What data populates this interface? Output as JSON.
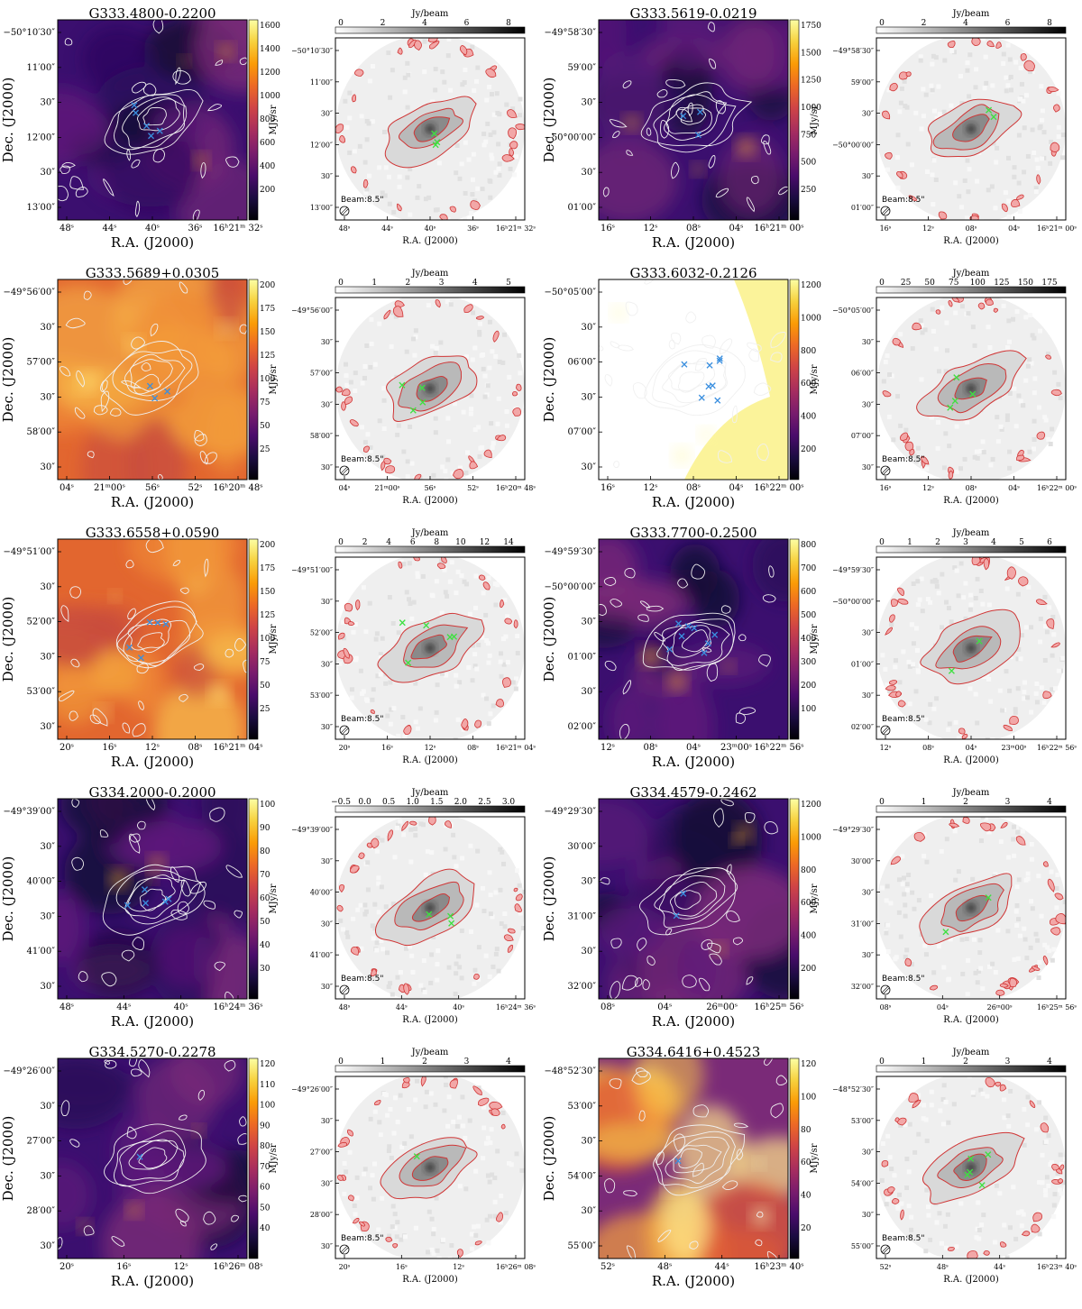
{
  "figure": {
    "xlabel": "R.A. (J2000)",
    "ylabel": "Dec. (J2000)",
    "sb_unit": "MJy/sr",
    "flux_unit": "Jy/beam",
    "beam_label": "Beam:8.5\""
  },
  "colors": {
    "contour_white": "#f0f0f0",
    "contour_red": "#d03535",
    "fill_red": "#f2a7a7",
    "cross_blue": "#3a8fdf",
    "cross_green": "#3ee040"
  },
  "chart_data": [
    {
      "type": "heatmap",
      "title": "G333.4800-0.2200",
      "cmap": "inferno",
      "bg": "dark",
      "colorbar": {
        "label": "MJy/sr",
        "scale": "log",
        "range": [
          100,
          1700
        ],
        "ticks": [
          "1600",
          "1400",
          "1200",
          "1000",
          "800",
          "600",
          "400",
          "200"
        ]
      },
      "ra_ticks": [
        "48ˢ",
        "44ˢ",
        "40ˢ",
        "36ˢ",
        "16ʰ21ᵐ 32ˢ"
      ],
      "dec_ticks": [
        "−50°10′30″",
        "11′00″",
        "30″",
        "12′00″",
        "30″",
        "13′00″"
      ],
      "blue_crosses": 5
    },
    {
      "type": "heatmap",
      "title": "",
      "cmap": "gray",
      "colorbar": {
        "label": "Jy/beam",
        "range": [
          -1,
          8.5
        ],
        "ticks": [
          "0",
          "2",
          "4",
          "6",
          "8"
        ]
      },
      "ra_ticks": [
        "48ˢ",
        "44ˢ",
        "40ˢ",
        "36ˢ",
        "16ʰ21ᵐ 32ˢ"
      ],
      "dec_ticks": [
        "−50°10′30″",
        "11′00″",
        "30″",
        "12′00″",
        "30″",
        "13′00″"
      ],
      "green_crosses": 3
    },
    {
      "type": "heatmap",
      "title": "G333.5619-0.0219",
      "cmap": "inferno",
      "bg": "dark",
      "colorbar": {
        "label": "MJy/sr",
        "scale": "log",
        "range": [
          100,
          1800
        ],
        "ticks": [
          "1750",
          "1500",
          "1250",
          "1000",
          "750",
          "500",
          "250"
        ]
      },
      "ra_ticks": [
        "16ˢ",
        "12ˢ",
        "08ˢ",
        "04ˢ",
        "16ʰ21ᵐ 00ˢ"
      ],
      "dec_ticks": [
        "−49°58′30″",
        "59′00″",
        "30″",
        "−50°00′00″",
        "30″",
        "01′00″"
      ],
      "blue_crosses": 3
    },
    {
      "type": "heatmap",
      "title": "",
      "cmap": "gray",
      "colorbar": {
        "label": "Jy/beam",
        "range": [
          -1,
          8.5
        ],
        "ticks": [
          "0",
          "2",
          "4",
          "6",
          "8"
        ]
      },
      "ra_ticks": [
        "16ˢ",
        "12ˢ",
        "08ˢ",
        "04ˢ",
        "16ʰ21ᵐ 00ˢ"
      ],
      "dec_ticks": [
        "−49°58′30″",
        "59′00″",
        "30″",
        "−50°00′00″",
        "30″",
        "01′00″"
      ],
      "green_crosses": 2
    },
    {
      "type": "heatmap",
      "title": "G333.5689+0.0305",
      "cmap": "inferno",
      "bg": "warm",
      "colorbar": {
        "label": "MJy/sr",
        "scale": "log",
        "range": [
          20,
          210
        ],
        "ticks": [
          "200",
          "175",
          "150",
          "125",
          "100",
          "75",
          "50",
          "25"
        ]
      },
      "ra_ticks": [
        "04ˢ",
        "21ᵐ00ˢ",
        "56ˢ",
        "52ˢ",
        "16ʰ20ᵐ 48ˢ"
      ],
      "dec_ticks": [
        "−49°56′00″",
        "30″",
        "57′00″",
        "30″",
        "58′00″",
        "30″"
      ],
      "blue_crosses": 3
    },
    {
      "type": "heatmap",
      "title": "",
      "cmap": "gray",
      "colorbar": {
        "label": "Jy/beam",
        "range": [
          -0.5,
          5.5
        ],
        "ticks": [
          "0",
          "1",
          "2",
          "3",
          "4",
          "5"
        ]
      },
      "ra_ticks": [
        "04ˢ",
        "21ᵐ00ˢ",
        "56ˢ",
        "52ˢ",
        "16ʰ20ᵐ 48ˢ"
      ],
      "dec_ticks": [
        "−49°56′00″",
        "30″",
        "57′00″",
        "30″",
        "58′00″",
        "30″"
      ],
      "green_crosses": 4
    },
    {
      "type": "heatmap",
      "title": "G333.6032-0.2126",
      "cmap": "inferno",
      "bg": "saturated",
      "colorbar": {
        "label": "MJy/sr",
        "scale": "log",
        "range": [
          100,
          1250
        ],
        "ticks": [
          "1200",
          "1000",
          "800",
          "600",
          "400",
          "200"
        ]
      },
      "ra_ticks": [
        "16ˢ",
        "12ˢ",
        "08ˢ",
        "04ˢ",
        "16ʰ22ᵐ 00ˢ"
      ],
      "dec_ticks": [
        "−50°05′00″",
        "30″",
        "06′00″",
        "30″",
        "07′00″",
        "30″"
      ],
      "blue_crosses": 8
    },
    {
      "type": "heatmap",
      "title": "",
      "cmap": "gray",
      "colorbar": {
        "label": "Jy/beam",
        "range": [
          -5,
          190
        ],
        "ticks": [
          "0",
          "25",
          "50",
          "75",
          "100",
          "125",
          "150",
          "175"
        ]
      },
      "ra_ticks": [
        "16ˢ",
        "12ˢ",
        "08ˢ",
        "04ˢ",
        "16ʰ22ᵐ 00ˢ"
      ],
      "dec_ticks": [
        "−50°05′00″",
        "30″",
        "06′00″",
        "30″",
        "07′00″",
        "30″"
      ],
      "green_crosses": 4
    },
    {
      "type": "heatmap",
      "title": "G333.6558+0.0590",
      "cmap": "inferno",
      "bg": "warm",
      "colorbar": {
        "label": "MJy/sr",
        "scale": "log",
        "range": [
          20,
          210
        ],
        "ticks": [
          "200",
          "175",
          "150",
          "125",
          "100",
          "75",
          "50",
          "25"
        ]
      },
      "ra_ticks": [
        "20ˢ",
        "16ˢ",
        "12ˢ",
        "08ˢ",
        "16ʰ21ᵐ 04ˢ"
      ],
      "dec_ticks": [
        "−49°51′00″",
        "30″",
        "52′00″",
        "30″",
        "53′00″",
        "30″"
      ],
      "blue_crosses": 5
    },
    {
      "type": "heatmap",
      "title": "",
      "cmap": "gray",
      "colorbar": {
        "label": "Jy/beam",
        "range": [
          -0.5,
          14.5
        ],
        "ticks": [
          "0",
          "2",
          "4",
          "6",
          "8",
          "10",
          "12",
          "14"
        ]
      },
      "ra_ticks": [
        "20ˢ",
        "16ˢ",
        "12ˢ",
        "08ˢ",
        "16ʰ21ᵐ 04ˢ"
      ],
      "dec_ticks": [
        "−49°51′00″",
        "30″",
        "52′00″",
        "30″",
        "53′00″",
        "30″"
      ],
      "green_crosses": 5
    },
    {
      "type": "heatmap",
      "title": "G333.7700-0.2500",
      "cmap": "inferno",
      "bg": "dark",
      "colorbar": {
        "label": "MJy/sr",
        "scale": "log",
        "range": [
          60,
          850
        ],
        "ticks": [
          "800",
          "700",
          "600",
          "500",
          "400",
          "300",
          "200",
          "100"
        ]
      },
      "ra_ticks": [
        "12ˢ",
        "08ˢ",
        "04ˢ",
        "23ᵐ00ˢ",
        "16ʰ22ᵐ 56ˢ"
      ],
      "dec_ticks": [
        "−49°59′30″",
        "−50°00′00″",
        "30″",
        "01′00″",
        "30″",
        "02′00″"
      ],
      "blue_crosses": 8
    },
    {
      "type": "heatmap",
      "title": "",
      "cmap": "gray",
      "colorbar": {
        "label": "Jy/beam",
        "range": [
          -0.3,
          6.8
        ],
        "ticks": [
          "0",
          "1",
          "2",
          "3",
          "4",
          "5",
          "6"
        ]
      },
      "ra_ticks": [
        "12ˢ",
        "08ˢ",
        "04ˢ",
        "23ᵐ00ˢ",
        "16ʰ22ᵐ 56ˢ"
      ],
      "dec_ticks": [
        "−49°59′30″",
        "−50°00′00″",
        "30″",
        "01′00″",
        "30″",
        "02′00″"
      ],
      "green_crosses": 2
    },
    {
      "type": "heatmap",
      "title": "G334.2000-0.2000",
      "cmap": "inferno",
      "bg": "dark",
      "colorbar": {
        "label": "MJy/sr",
        "scale": "log",
        "range": [
          25,
          105
        ],
        "ticks": [
          "100",
          "90",
          "80",
          "70",
          "60",
          "50",
          "40",
          "30"
        ]
      },
      "ra_ticks": [
        "48ˢ",
        "44ˢ",
        "40ˢ",
        "16ʰ24ᵐ 36ˢ"
      ],
      "dec_ticks": [
        "−49°39′00″",
        "30″",
        "40′00″",
        "30″",
        "41′00″",
        "30″"
      ],
      "blue_crosses": 5
    },
    {
      "type": "heatmap",
      "title": "",
      "cmap": "gray",
      "colorbar": {
        "label": "Jy/beam",
        "range": [
          -0.6,
          3.3
        ],
        "ticks": [
          "−0.5",
          "0.0",
          "0.5",
          "1.0",
          "1.5",
          "2.0",
          "2.5",
          "3.0"
        ]
      },
      "ra_ticks": [
        "48ˢ",
        "44ˢ",
        "40ˢ",
        "16ʰ24ᵐ 36ˢ"
      ],
      "dec_ticks": [
        "−49°39′00″",
        "30″",
        "40′00″",
        "30″",
        "41′00″",
        "30″"
      ],
      "green_crosses": 3
    },
    {
      "type": "heatmap",
      "title": "G334.4579-0.2462",
      "cmap": "inferno",
      "bg": "dark",
      "colorbar": {
        "label": "MJy/sr",
        "scale": "log",
        "range": [
          100,
          1250
        ],
        "ticks": [
          "1200",
          "1000",
          "800",
          "600",
          "400",
          "200"
        ]
      },
      "ra_ticks": [
        "08ˢ",
        "04ˢ",
        "26ᵐ00ˢ",
        "16ʰ25ᵐ 56ˢ"
      ],
      "dec_ticks": [
        "−49°29′30″",
        "30′00″",
        "30″",
        "31′00″",
        "30″",
        "32′00″"
      ],
      "blue_crosses": 2
    },
    {
      "type": "heatmap",
      "title": "",
      "cmap": "gray",
      "colorbar": {
        "label": "Jy/beam",
        "range": [
          -0.5,
          4
        ],
        "ticks": [
          "0",
          "1",
          "2",
          "3",
          "4"
        ]
      },
      "ra_ticks": [
        "08ˢ",
        "04ˢ",
        "26ᵐ00ˢ",
        "16ʰ25ᵐ 56ˢ"
      ],
      "dec_ticks": [
        "−49°29′30″",
        "30′00″",
        "30″",
        "31′00″",
        "30″",
        "32′00″"
      ],
      "green_crosses": 2
    },
    {
      "type": "heatmap",
      "title": "G334.5270-0.2278",
      "cmap": "inferno",
      "bg": "dark",
      "colorbar": {
        "label": "MJy/sr",
        "scale": "log",
        "range": [
          35,
          125
        ],
        "ticks": [
          "120",
          "110",
          "100",
          "90",
          "80",
          "70",
          "60",
          "50",
          "40"
        ]
      },
      "ra_ticks": [
        "20ˢ",
        "16ˢ",
        "12ˢ",
        "16ʰ26ᵐ 08ˢ"
      ],
      "dec_ticks": [
        "−49°26′00″",
        "30″",
        "27′00″",
        "30″",
        "28′00″",
        "30″"
      ],
      "blue_crosses": 1
    },
    {
      "type": "heatmap",
      "title": "",
      "cmap": "gray",
      "colorbar": {
        "label": "Jy/beam",
        "range": [
          -0.5,
          4.8
        ],
        "ticks": [
          "0",
          "1",
          "2",
          "3",
          "4"
        ]
      },
      "ra_ticks": [
        "20ˢ",
        "16ˢ",
        "12ˢ",
        "16ʰ26ᵐ 08ˢ"
      ],
      "dec_ticks": [
        "−49°26′00″",
        "30″",
        "27′00″",
        "30″",
        "28′00″",
        "30″"
      ],
      "green_crosses": 1
    },
    {
      "type": "heatmap",
      "title": "G334.6416+0.4523",
      "cmap": "inferno",
      "bg": "bright",
      "colorbar": {
        "label": "MJy/sr",
        "scale": "log",
        "range": [
          15,
          130
        ],
        "ticks": [
          "120",
          "100",
          "80",
          "60",
          "40",
          "20"
        ]
      },
      "ra_ticks": [
        "52ˢ",
        "48ˢ",
        "44ˢ",
        "16ʰ23ᵐ 40ˢ"
      ],
      "dec_ticks": [
        "−48°52′30″",
        "53′00″",
        "30″",
        "54′00″",
        "30″",
        "55′00″"
      ],
      "blue_crosses": 1
    },
    {
      "type": "heatmap",
      "title": "",
      "cmap": "gray",
      "colorbar": {
        "label": "Jy/beam",
        "range": [
          -0.5,
          4
        ],
        "ticks": [
          "0",
          "1",
          "2",
          "3",
          "4"
        ]
      },
      "ra_ticks": [
        "52ˢ",
        "48ˢ",
        "44ˢ",
        "16ʰ23ᵐ 40ˢ"
      ],
      "dec_ticks": [
        "−48°52′30″",
        "53′00″",
        "30″",
        "54′00″",
        "30″",
        "55′00″"
      ],
      "green_crosses": 5
    }
  ]
}
